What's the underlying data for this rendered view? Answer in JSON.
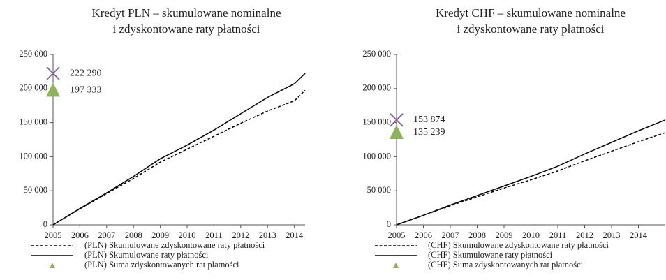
{
  "chart_data": [
    {
      "type": "line",
      "title": [
        "Kredyt PLN – skumulowane nominalne",
        "i zdyskontowane raty płatności"
      ],
      "x": [
        2005,
        2006,
        2007,
        2008,
        2009,
        2010,
        2011,
        2012,
        2013,
        2014,
        2014.4
      ],
      "xlim": [
        2005,
        2014.4
      ],
      "xticks": [
        2005,
        2006,
        2007,
        2008,
        2009,
        2010,
        2011,
        2012,
        2013,
        2014
      ],
      "ylim": [
        0,
        250000
      ],
      "yticks": [
        0,
        {
          "value": 50000,
          "label": "50 000"
        },
        {
          "value": 100000,
          "label": "100 000"
        },
        {
          "value": 150000,
          "label": "150 000"
        },
        {
          "value": 200000,
          "label": "200 000"
        },
        {
          "value": 250000,
          "label": "250 000"
        }
      ],
      "series": [
        {
          "name": "(PLN) Skumulowane zdyskontowane raty płatności",
          "color": "#000000",
          "style": "dashed",
          "values": [
            0,
            23500,
            46000,
            68000,
            92000,
            111000,
            130000,
            149000,
            167000,
            182000,
            197333
          ]
        },
        {
          "name": "(PLN) Skumulowane raty płatności",
          "color": "#000000",
          "style": "solid",
          "values": [
            0,
            24000,
            47000,
            71000,
            97000,
            117000,
            139000,
            163000,
            187000,
            207000,
            222290
          ]
        }
      ],
      "points": [
        {
          "shape": "cross",
          "color": "#7f5fa8",
          "value": 222290,
          "value_label": "222 290"
        },
        {
          "shape": "triangle",
          "name": "(PLN) Suma zdyskontowanych rat płatności",
          "color": "#8db35a",
          "value": 197333,
          "value_label": "197 333"
        }
      ]
    },
    {
      "type": "line",
      "title": [
        "Kredyt CHF – skumulowane nominalne",
        "i zdyskontowane raty płatności"
      ],
      "x": [
        2005,
        2006,
        2007,
        2008,
        2009,
        2010,
        2011,
        2012,
        2013,
        2014,
        2015
      ],
      "xlim": [
        2005,
        2015
      ],
      "xticks": [
        2005,
        2006,
        2007,
        2008,
        2009,
        2010,
        2011,
        2012,
        2013,
        2014
      ],
      "ylim": [
        0,
        250000
      ],
      "yticks": [
        0,
        {
          "value": 50000,
          "label": "50 000"
        },
        {
          "value": 100000,
          "label": "100 000"
        },
        {
          "value": 150000,
          "label": "150 000"
        },
        {
          "value": 200000,
          "label": "200 000"
        },
        {
          "value": 250000,
          "label": "250 000"
        }
      ],
      "series": [
        {
          "name": "(CHF) Skumulowane zdyskontowane raty płatności",
          "color": "#000000",
          "style": "dashed",
          "values": [
            0,
            14000,
            28000,
            41000,
            54000,
            66000,
            79000,
            94000,
            108000,
            122000,
            135239
          ]
        },
        {
          "name": "(CHF) Skumulowane raty płatności",
          "color": "#000000",
          "style": "solid",
          "values": [
            0,
            14000,
            29000,
            43000,
            57000,
            71000,
            86000,
            104000,
            121000,
            138000,
            153874
          ]
        }
      ],
      "points": [
        {
          "shape": "cross",
          "color": "#7f5fa8",
          "value": 153874,
          "value_label": "153 874"
        },
        {
          "shape": "triangle",
          "name": "(CHF) Suma zdyskontowanych rat płatności",
          "color": "#8db35a",
          "value": 135239,
          "value_label": "135 239"
        }
      ]
    }
  ]
}
